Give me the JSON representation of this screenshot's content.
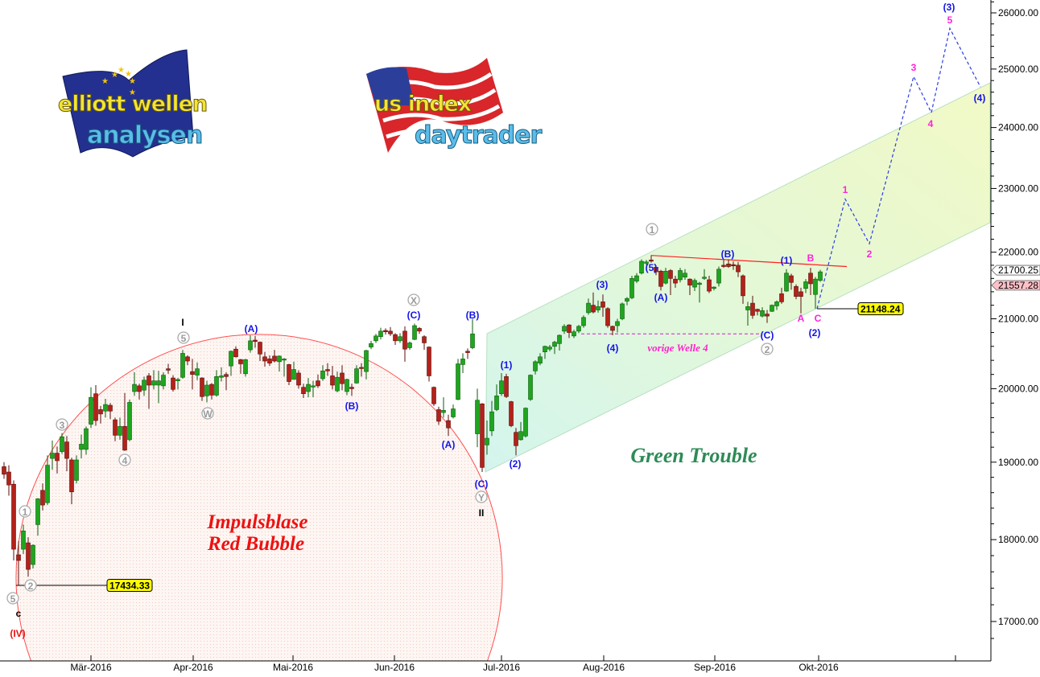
{
  "logos": {
    "left": {
      "line1": "elliott wellen",
      "line2": "analysen"
    },
    "right": {
      "line1": "us index",
      "line2": "daytrader"
    }
  },
  "chart_data": {
    "type": "candlestick",
    "y_scale": "log",
    "ylim": [
      16600,
      26300
    ],
    "y_ticks": [
      "26000.00",
      "25000.00",
      "24000.00",
      "23000.00",
      "22000.00",
      "21000.00",
      "20000.00",
      "19000.00",
      "18000.00",
      "17000.00"
    ],
    "y_tick_values": [
      26000,
      25000,
      24000,
      23000,
      22000,
      21000,
      20000,
      19000,
      18000,
      17000
    ],
    "x_ticks": [
      "Mär-2016",
      "Apr-2016",
      "Mai-2016",
      "Jun-2016",
      "Jul-2016",
      "Aug-2016",
      "Sep-2016",
      "Okt-2016",
      ""
    ],
    "grid": false,
    "colors": {
      "up": "#1fa51f",
      "down": "#b3221a",
      "bubble": "#ff3b3b",
      "channel": "#dff5d8",
      "projection": "#2a3fe0"
    },
    "candles_ohlc": [
      [
        18940,
        19000,
        18780,
        18840
      ],
      [
        18870,
        18960,
        18560,
        18700
      ],
      [
        18710,
        18760,
        17740,
        17880
      ],
      [
        17810,
        17980,
        17434,
        17740
      ],
      [
        17880,
        18190,
        17820,
        18110
      ],
      [
        17960,
        18030,
        17540,
        17630
      ],
      [
        17690,
        17940,
        17640,
        17930
      ],
      [
        18190,
        18530,
        18050,
        18520
      ],
      [
        18630,
        18720,
        18370,
        18440
      ],
      [
        18470,
        19090,
        18440,
        18960
      ],
      [
        19050,
        19290,
        18900,
        19120
      ],
      [
        19120,
        19210,
        18850,
        19020
      ],
      [
        19140,
        19390,
        19110,
        19340
      ],
      [
        19270,
        19350,
        18880,
        19050
      ],
      [
        19030,
        19060,
        18450,
        18610
      ],
      [
        18760,
        19090,
        18720,
        19030
      ],
      [
        19170,
        19370,
        19050,
        19240
      ],
      [
        19170,
        19480,
        19100,
        19450
      ],
      [
        19510,
        20020,
        19460,
        19880
      ],
      [
        19930,
        20050,
        19490,
        19560
      ],
      [
        19710,
        19760,
        19520,
        19650
      ],
      [
        19690,
        19860,
        19600,
        19780
      ],
      [
        19770,
        19800,
        19580,
        19690
      ],
      [
        19570,
        19600,
        19280,
        19360
      ],
      [
        19360,
        19600,
        19300,
        19480
      ],
      [
        19480,
        19940,
        19150,
        19160
      ],
      [
        19300,
        19850,
        19280,
        19810
      ],
      [
        19960,
        20230,
        19900,
        20060
      ],
      [
        20040,
        20070,
        19850,
        19960
      ],
      [
        19980,
        20170,
        19900,
        20120
      ],
      [
        20180,
        20220,
        19720,
        20050
      ],
      [
        20050,
        20260,
        19990,
        20110
      ],
      [
        20050,
        20250,
        19800,
        20110
      ],
      [
        20040,
        20230,
        19990,
        20190
      ],
      [
        20280,
        20350,
        20210,
        20260
      ],
      [
        20150,
        20190,
        19960,
        19990
      ],
      [
        20110,
        20150,
        19990,
        20130
      ],
      [
        20160,
        20550,
        20140,
        20500
      ],
      [
        20450,
        20470,
        20330,
        20390
      ],
      [
        20240,
        20420,
        19990,
        20200
      ],
      [
        20190,
        20370,
        20120,
        20280
      ],
      [
        20150,
        20160,
        19830,
        19890
      ],
      [
        19900,
        20110,
        19810,
        20050
      ],
      [
        20060,
        20080,
        19850,
        19910
      ],
      [
        19910,
        20260,
        19890,
        20170
      ],
      [
        20160,
        20300,
        20100,
        20180
      ],
      [
        20200,
        20230,
        19980,
        20170
      ],
      [
        20320,
        20540,
        20180,
        20530
      ],
      [
        20560,
        20600,
        20440,
        20450
      ],
      [
        20410,
        20420,
        20210,
        20350
      ],
      [
        20210,
        20420,
        20170,
        20410
      ],
      [
        20550,
        20760,
        20510,
        20680
      ],
      [
        20690,
        20750,
        20580,
        20670
      ],
      [
        20660,
        20670,
        20390,
        20490
      ],
      [
        20450,
        20520,
        20310,
        20390
      ],
      [
        20420,
        20470,
        20320,
        20360
      ],
      [
        20460,
        20550,
        20370,
        20390
      ],
      [
        20380,
        20470,
        20240,
        20460
      ],
      [
        20410,
        20430,
        20170,
        20420
      ],
      [
        20340,
        20350,
        20050,
        20100
      ],
      [
        20130,
        20380,
        20130,
        20270
      ],
      [
        20220,
        20260,
        20000,
        20050
      ],
      [
        20020,
        20070,
        19870,
        19930
      ],
      [
        19960,
        20150,
        19880,
        20060
      ],
      [
        20030,
        20110,
        19880,
        20040
      ],
      [
        20110,
        20200,
        20010,
        20040
      ],
      [
        20140,
        20330,
        20110,
        20250
      ],
      [
        20270,
        20360,
        20180,
        20250
      ],
      [
        20180,
        20320,
        19990,
        20050
      ],
      [
        19970,
        20240,
        19950,
        20160
      ],
      [
        20220,
        20330,
        19980,
        20070
      ],
      [
        19960,
        20140,
        19910,
        20130
      ],
      [
        20020,
        20070,
        19900,
        20000
      ],
      [
        20080,
        20330,
        20070,
        20280
      ],
      [
        20300,
        20360,
        20170,
        20290
      ],
      [
        20240,
        20550,
        20130,
        20540
      ],
      [
        20590,
        20680,
        20560,
        20640
      ],
      [
        20680,
        20780,
        20650,
        20750
      ],
      [
        20740,
        20870,
        20700,
        20820
      ],
      [
        20830,
        20860,
        20770,
        20810
      ],
      [
        20820,
        20880,
        20750,
        20780
      ],
      [
        20770,
        20790,
        20620,
        20680
      ],
      [
        20680,
        20790,
        20650,
        20740
      ],
      [
        20820,
        20890,
        20380,
        20560
      ],
      [
        20580,
        20670,
        20550,
        20650
      ],
      [
        20700,
        20930,
        20690,
        20900
      ],
      [
        20860,
        20880,
        20780,
        20820
      ],
      [
        20740,
        20760,
        20550,
        20650
      ],
      [
        20590,
        20600,
        20100,
        20180
      ],
      [
        20020,
        20030,
        19760,
        19790
      ],
      [
        19710,
        19750,
        19500,
        19550
      ],
      [
        19670,
        19880,
        19600,
        19700
      ],
      [
        19560,
        19640,
        19350,
        19460
      ],
      [
        19610,
        19780,
        19590,
        19720
      ],
      [
        19850,
        20420,
        19840,
        20350
      ],
      [
        20340,
        20500,
        20220,
        20420
      ],
      [
        20530,
        20570,
        20420,
        20510
      ],
      [
        20580,
        21000,
        20560,
        20780
      ],
      [
        19380,
        20000,
        19200,
        19840
      ],
      [
        19790,
        19800,
        18870,
        18930
      ],
      [
        19230,
        19560,
        19100,
        19320
      ],
      [
        19420,
        19830,
        19350,
        19680
      ],
      [
        19710,
        20060,
        19690,
        19900
      ],
      [
        19930,
        20220,
        19900,
        20110
      ],
      [
        20170,
        20210,
        19870,
        19890
      ],
      [
        19820,
        19830,
        19470,
        19490
      ],
      [
        19400,
        19460,
        19090,
        19220
      ],
      [
        19300,
        19540,
        19290,
        19410
      ],
      [
        19350,
        19740,
        19330,
        19730
      ],
      [
        19850,
        20200,
        19830,
        20190
      ],
      [
        20250,
        20400,
        20200,
        20380
      ],
      [
        20360,
        20500,
        20330,
        20450
      ],
      [
        20520,
        20610,
        20420,
        20600
      ],
      [
        20560,
        20620,
        20530,
        20590
      ],
      [
        20600,
        20680,
        20490,
        20660
      ],
      [
        20640,
        20770,
        20540,
        20760
      ],
      [
        20820,
        20920,
        20780,
        20890
      ],
      [
        20910,
        20920,
        20720,
        20800
      ],
      [
        20750,
        20840,
        20720,
        20810
      ],
      [
        20820,
        20910,
        20790,
        20890
      ],
      [
        20900,
        21050,
        20870,
        21020
      ],
      [
        21090,
        21300,
        21060,
        21230
      ],
      [
        21200,
        21390,
        21080,
        21100
      ],
      [
        21130,
        21270,
        21090,
        21180
      ],
      [
        21250,
        21360,
        21030,
        21170
      ],
      [
        21150,
        21170,
        20870,
        20900
      ],
      [
        20890,
        20900,
        20760,
        20830
      ],
      [
        20900,
        21000,
        20800,
        20960
      ],
      [
        21000,
        21240,
        20980,
        21220
      ],
      [
        21260,
        21320,
        21200,
        21300
      ],
      [
        21310,
        21640,
        21290,
        21600
      ],
      [
        21560,
        21680,
        21530,
        21640
      ],
      [
        21680,
        21890,
        21660,
        21860
      ],
      [
        21830,
        21880,
        21800,
        21850
      ],
      [
        21880,
        21950,
        21840,
        21870
      ],
      [
        21770,
        21800,
        21650,
        21700
      ],
      [
        21710,
        21730,
        21420,
        21480
      ],
      [
        21530,
        21760,
        21510,
        21710
      ],
      [
        21720,
        21740,
        21350,
        21600
      ],
      [
        21590,
        21640,
        21460,
        21530
      ],
      [
        21580,
        21760,
        21540,
        21720
      ],
      [
        21620,
        21740,
        21580,
        21680
      ],
      [
        21590,
        21600,
        21350,
        21500
      ],
      [
        21470,
        21600,
        21410,
        21570
      ],
      [
        21510,
        21550,
        21240,
        21530
      ],
      [
        21600,
        21740,
        21580,
        21620
      ],
      [
        21580,
        21640,
        21380,
        21410
      ],
      [
        21450,
        21480,
        21420,
        21470
      ],
      [
        21530,
        21780,
        21480,
        21740
      ],
      [
        21800,
        21880,
        21760,
        21780
      ],
      [
        21820,
        21890,
        21760,
        21780
      ],
      [
        21810,
        21860,
        21730,
        21790
      ],
      [
        21800,
        21850,
        21620,
        21700
      ],
      [
        21640,
        21660,
        21220,
        21340
      ],
      [
        21130,
        21250,
        20900,
        21180
      ],
      [
        21230,
        21340,
        21000,
        21050
      ],
      [
        21140,
        21150,
        21050,
        21110
      ],
      [
        21040,
        21170,
        21020,
        21120
      ],
      [
        21070,
        21130,
        20940,
        21040
      ],
      [
        21110,
        21210,
        21100,
        21200
      ],
      [
        21190,
        21270,
        21130,
        21250
      ],
      [
        21370,
        21460,
        21220,
        21250
      ],
      [
        21410,
        21740,
        21400,
        21680
      ],
      [
        21640,
        21670,
        21430,
        21540
      ],
      [
        21480,
        21510,
        21290,
        21330
      ],
      [
        21400,
        21460,
        21080,
        21330
      ],
      [
        21450,
        21590,
        21380,
        21550
      ],
      [
        21680,
        21760,
        21350,
        21520
      ],
      [
        21360,
        21620,
        21148,
        21590
      ],
      [
        21570,
        21730,
        21550,
        21700
      ]
    ],
    "current_price_tags": [
      {
        "label": "21700.25",
        "value": 21700.25,
        "color": "#ffffff"
      },
      {
        "label": "21557.28",
        "value": 21557.28,
        "color": "#ffc0c8"
      }
    ],
    "price_markers": [
      {
        "label": "17434.33",
        "value": 17434.33
      },
      {
        "label": "21148.24",
        "value": 21148.24
      }
    ],
    "resistance_line": [
      21950,
      21780
    ],
    "previous_wave4_level": 20780,
    "projection_path": [
      21148.24,
      22830,
      22130,
      24870,
      24250,
      25720,
      24690
    ]
  },
  "annotations": {
    "wave_labels": [
      {
        "text": "1",
        "style": "circle"
      },
      {
        "text": "2",
        "style": "circle"
      },
      {
        "text": "5",
        "style": "circle"
      },
      {
        "text": "3",
        "style": "circle"
      },
      {
        "text": "4",
        "style": "circle"
      },
      {
        "text": "5",
        "style": "circle"
      },
      {
        "text": "W",
        "style": "circle"
      },
      {
        "text": "X",
        "style": "circle"
      },
      {
        "text": "Y",
        "style": "circle"
      },
      {
        "text": "1",
        "style": "circle"
      },
      {
        "text": "2",
        "style": "circle"
      },
      {
        "text": "(A)",
        "style": "blue"
      },
      {
        "text": "(B)",
        "style": "blue"
      },
      {
        "text": "(C)",
        "style": "blue"
      },
      {
        "text": "(A)",
        "style": "blue"
      },
      {
        "text": "(B)",
        "style": "blue"
      },
      {
        "text": "(C)",
        "style": "blue"
      },
      {
        "text": "(1)",
        "style": "blue"
      },
      {
        "text": "(2)",
        "style": "blue"
      },
      {
        "text": "(3)",
        "style": "blue"
      },
      {
        "text": "(4)",
        "style": "blue"
      },
      {
        "text": "(5)",
        "style": "blue"
      },
      {
        "text": "(A)",
        "style": "blue"
      },
      {
        "text": "(B)",
        "style": "blue"
      },
      {
        "text": "(1)",
        "style": "blue"
      },
      {
        "text": "(C)",
        "style": "blue"
      },
      {
        "text": "(2)",
        "style": "blue"
      },
      {
        "text": "(3)",
        "style": "blue"
      },
      {
        "text": "(4)",
        "style": "blue"
      },
      {
        "text": "B",
        "style": "magenta"
      },
      {
        "text": "A",
        "style": "magenta"
      },
      {
        "text": "C",
        "style": "magenta"
      },
      {
        "text": "1",
        "style": "magenta"
      },
      {
        "text": "2",
        "style": "magenta"
      },
      {
        "text": "3",
        "style": "magenta"
      },
      {
        "text": "4",
        "style": "magenta"
      },
      {
        "text": "5",
        "style": "magenta"
      },
      {
        "text": "I",
        "style": "black"
      },
      {
        "text": "II",
        "style": "black"
      },
      {
        "text": "c",
        "style": "black"
      },
      {
        "text": "(IV)",
        "style": "red"
      }
    ],
    "bubble_line1": "Impulsblase",
    "bubble_line2": "Red Bubble",
    "green_trouble": "Green Trouble",
    "previous_wave4": "vorige Welle 4"
  }
}
